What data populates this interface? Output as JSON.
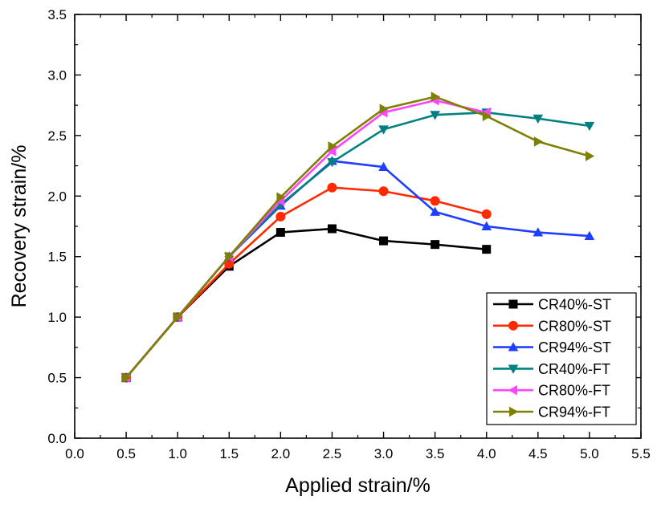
{
  "chart_data": {
    "type": "line",
    "title": "",
    "xlabel": "Applied strain/%",
    "ylabel": "Recovery strain/%",
    "xlim": [
      0.0,
      5.5
    ],
    "ylim": [
      0.0,
      3.5
    ],
    "x_ticks": [
      "0.0",
      "0.5",
      "1.0",
      "1.5",
      "2.0",
      "2.5",
      "3.0",
      "3.5",
      "4.0",
      "4.5",
      "5.0",
      "5.5"
    ],
    "y_ticks": [
      "0.0",
      "0.5",
      "1.0",
      "1.5",
      "2.0",
      "2.5",
      "3.0",
      "3.5"
    ],
    "grid": false,
    "legend_position": "bottom-right",
    "series": [
      {
        "name": "CR40%-ST",
        "color": "#000000",
        "marker": "square",
        "x": [
          0.5,
          1.0,
          1.5,
          2.0,
          2.5,
          3.0,
          3.5,
          4.0
        ],
        "y": [
          0.5,
          1.0,
          1.42,
          1.7,
          1.73,
          1.63,
          1.6,
          1.56
        ]
      },
      {
        "name": "CR80%-ST",
        "color": "#ff2a00",
        "marker": "circle",
        "x": [
          0.5,
          1.0,
          1.5,
          2.0,
          2.5,
          3.0,
          3.5,
          4.0
        ],
        "y": [
          0.5,
          1.0,
          1.44,
          1.83,
          2.07,
          2.04,
          1.96,
          1.85
        ]
      },
      {
        "name": "CR94%-ST",
        "color": "#1f3fff",
        "marker": "triangle-up",
        "x": [
          0.5,
          1.0,
          1.5,
          2.0,
          2.5,
          3.0,
          3.5,
          4.0,
          4.5,
          5.0
        ],
        "y": [
          0.5,
          1.0,
          1.5,
          1.92,
          2.29,
          2.24,
          1.87,
          1.75,
          1.7,
          1.67
        ]
      },
      {
        "name": "CR40%-FT",
        "color": "#008080",
        "marker": "triangle-down",
        "x": [
          0.5,
          1.0,
          1.5,
          2.0,
          2.5,
          3.0,
          3.5,
          4.0,
          4.5,
          5.0
        ],
        "y": [
          0.5,
          1.0,
          1.5,
          1.93,
          2.28,
          2.55,
          2.67,
          2.69,
          2.64,
          2.58
        ]
      },
      {
        "name": "CR80%-FT",
        "color": "#ff44ff",
        "marker": "triangle-left",
        "x": [
          0.5,
          1.0,
          1.5,
          2.0,
          2.5,
          3.0,
          3.5,
          4.0
        ],
        "y": [
          0.5,
          1.0,
          1.5,
          1.96,
          2.37,
          2.69,
          2.79,
          2.69
        ]
      },
      {
        "name": "CR94%-FT",
        "color": "#808000",
        "marker": "triangle-right",
        "x": [
          0.5,
          1.0,
          1.5,
          2.0,
          2.5,
          3.0,
          3.5,
          4.0,
          4.5,
          5.0
        ],
        "y": [
          0.5,
          1.0,
          1.5,
          1.99,
          2.41,
          2.72,
          2.82,
          2.66,
          2.45,
          2.33
        ]
      }
    ]
  }
}
